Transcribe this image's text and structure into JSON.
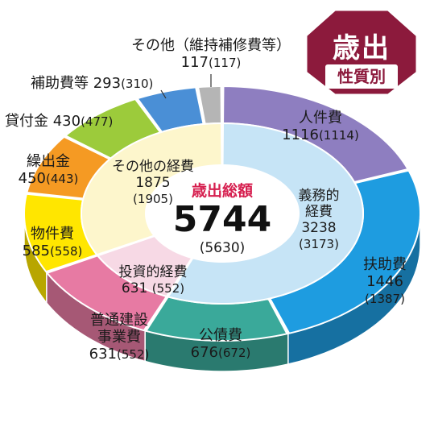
{
  "badge": {
    "title": "歳出",
    "subtitle": "性質別",
    "color": "#8c1a3c"
  },
  "chart_data": {
    "type": "pie",
    "variant": "donut-3d",
    "center": {
      "title": "歳出総額",
      "value": 5744,
      "prev": "(5630)",
      "title_color": "#d61f4f"
    },
    "outer": [
      {
        "name": "人件費",
        "value": 1116,
        "prev": 1114,
        "color": "#8e7ec0"
      },
      {
        "name": "扶助費",
        "value": 1446,
        "prev": 1387,
        "color": "#1e9ce0"
      },
      {
        "name": "公債費",
        "value": 676,
        "prev": 672,
        "color": "#3aa99a"
      },
      {
        "name": "普通建設事業費",
        "value": 631,
        "prev": 552,
        "color": "#e77aa3"
      },
      {
        "name": "物件費",
        "value": 585,
        "prev": 558,
        "color": "#ffe600"
      },
      {
        "name": "繰出金",
        "value": 450,
        "prev": 443,
        "color": "#f59a23"
      },
      {
        "name": "貸付金",
        "value": 430,
        "prev": 477,
        "color": "#9ccb3b"
      },
      {
        "name": "補助費等",
        "value": 293,
        "prev": 310,
        "color": "#4a8fd6"
      },
      {
        "name": "その他（維持補修費等）",
        "value": 117,
        "prev": 117,
        "color": "#b5b5b5"
      }
    ],
    "inner": [
      {
        "name": "義務的経費",
        "value": 3238,
        "prev": 3173,
        "color": "#c6e4f6"
      },
      {
        "name": "投資的経費",
        "value": 631,
        "prev": 552,
        "color": "#f7d9e5"
      },
      {
        "name": "その他の経費",
        "value": 1875,
        "prev": 1905,
        "color": "#fdf6cc"
      }
    ]
  }
}
